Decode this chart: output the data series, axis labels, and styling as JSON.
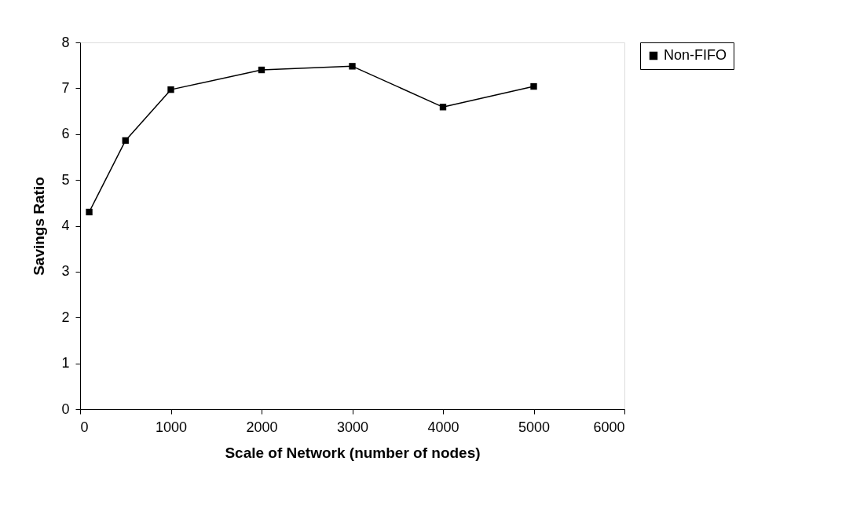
{
  "chart_data": {
    "type": "line",
    "xlabel": "Scale of Network (number of nodes)",
    "ylabel": "Savings Ratio",
    "x": [
      100,
      500,
      1000,
      2000,
      3000,
      4000,
      5000
    ],
    "series": [
      {
        "name": "Non-FIFO",
        "color": "#000000",
        "values": [
          4.3,
          5.86,
          6.97,
          7.4,
          7.48,
          6.59,
          7.04
        ]
      }
    ],
    "xlim": [
      0,
      6000
    ],
    "xticks": [
      0,
      1000,
      2000,
      3000,
      4000,
      5000,
      6000
    ],
    "ylim": [
      0,
      8
    ],
    "yticks": [
      0,
      1,
      2,
      3,
      4,
      5,
      6,
      7,
      8
    ],
    "grid": false,
    "legend": "right",
    "marker": "square",
    "line_style": "solid"
  }
}
